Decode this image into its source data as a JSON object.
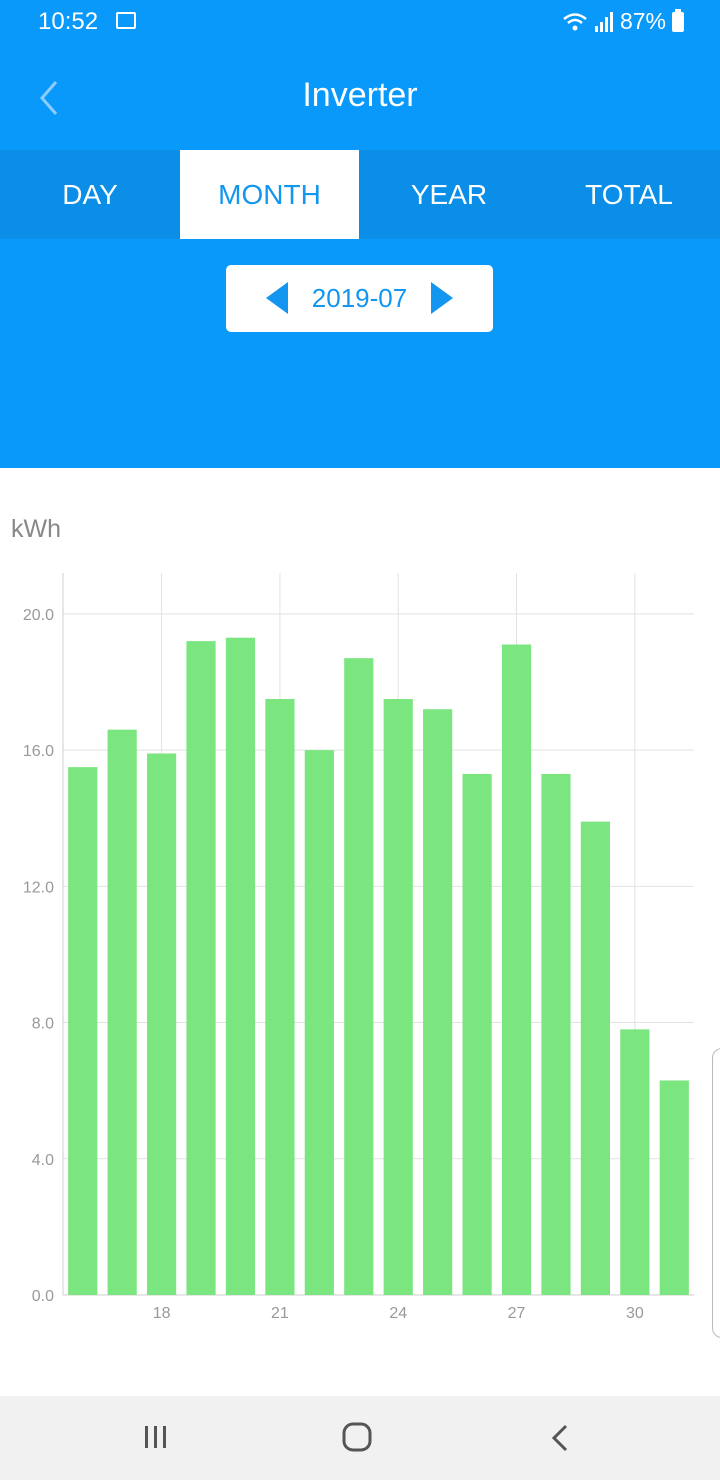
{
  "status_bar": {
    "time": "10:52",
    "battery": "87%"
  },
  "header": {
    "title": "Inverter"
  },
  "tabs": [
    "DAY",
    "MONTH",
    "YEAR",
    "TOTAL"
  ],
  "active_tab": "MONTH",
  "date_picker": {
    "value": "2019-07"
  },
  "chart_data": {
    "type": "bar",
    "ylabel": "kWh",
    "categories": [
      "16",
      "17",
      "18",
      "19",
      "20",
      "21",
      "22",
      "23",
      "24",
      "25",
      "26",
      "27",
      "28",
      "29",
      "30",
      "31"
    ],
    "values": [
      15.5,
      16.6,
      15.9,
      19.2,
      19.3,
      17.5,
      16.0,
      18.7,
      17.5,
      17.2,
      15.3,
      19.1,
      15.3,
      13.9,
      7.8,
      6.3
    ],
    "xticks": [
      "18",
      "21",
      "24",
      "27",
      "30"
    ],
    "yticks": [
      "0.0",
      "4.0",
      "8.0",
      "12.0",
      "16.0",
      "20.0"
    ],
    "ylim": [
      0,
      21.2
    ],
    "bar_color": "#7be57f"
  },
  "colors": {
    "primary": "#0899fb",
    "tab_bar": "#0a8ee8",
    "accent": "#1296f0"
  }
}
